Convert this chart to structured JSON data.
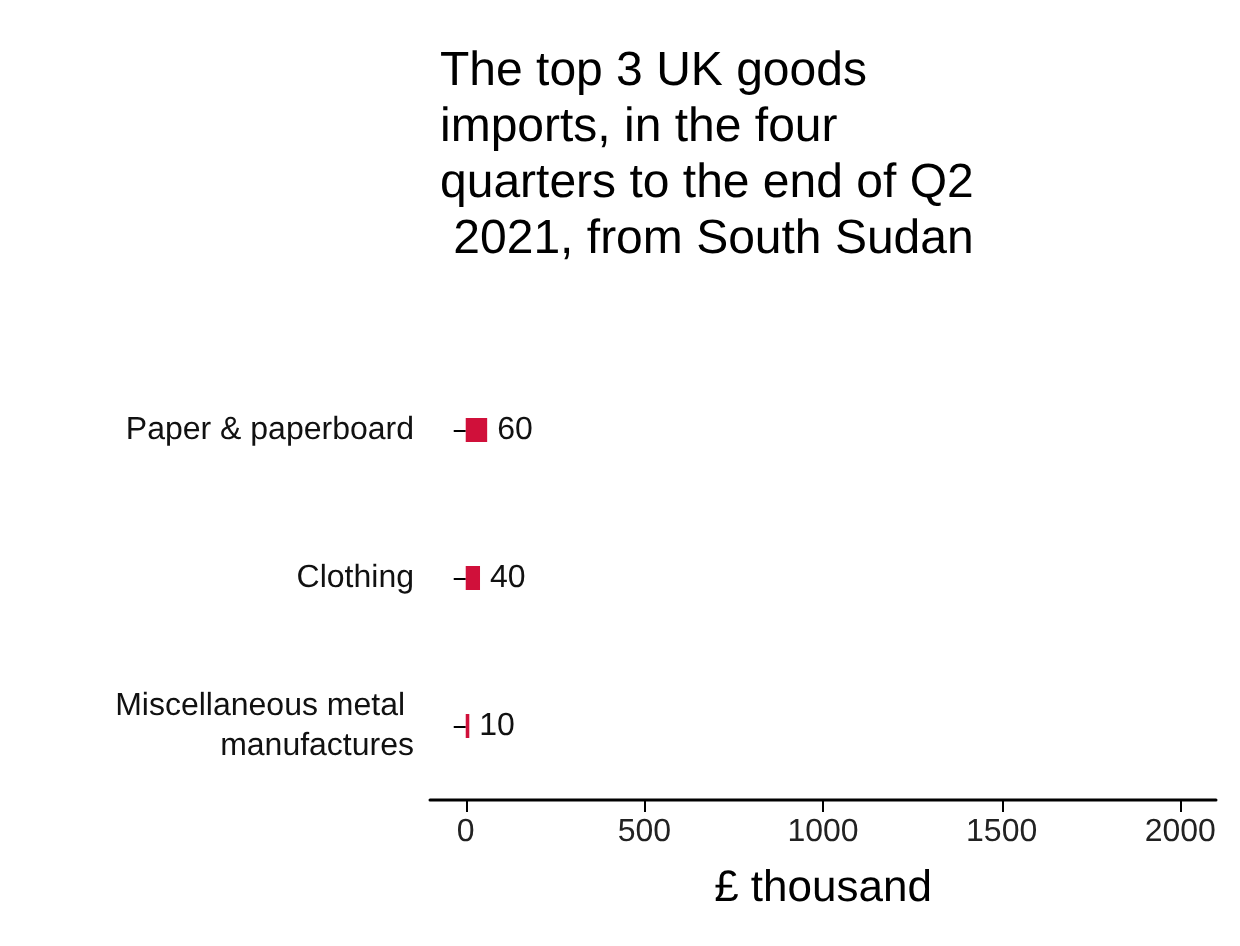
{
  "chart_data": {
    "type": "bar",
    "orientation": "horizontal",
    "title": "The top 3 UK goods imports, in the four quarters to the end of Q2 2021, from South Sudan",
    "xlabel": "£ thousand",
    "categories": [
      "Paper & paperboard",
      "Clothing",
      "Miscellaneous metal manufactures"
    ],
    "values": [
      60,
      40,
      10
    ],
    "color": "#d0103a",
    "xlim": [
      -100,
      2100
    ],
    "xticks": [
      0,
      500,
      1000,
      1500,
      2000
    ],
    "grid": false,
    "data_labels": true
  }
}
